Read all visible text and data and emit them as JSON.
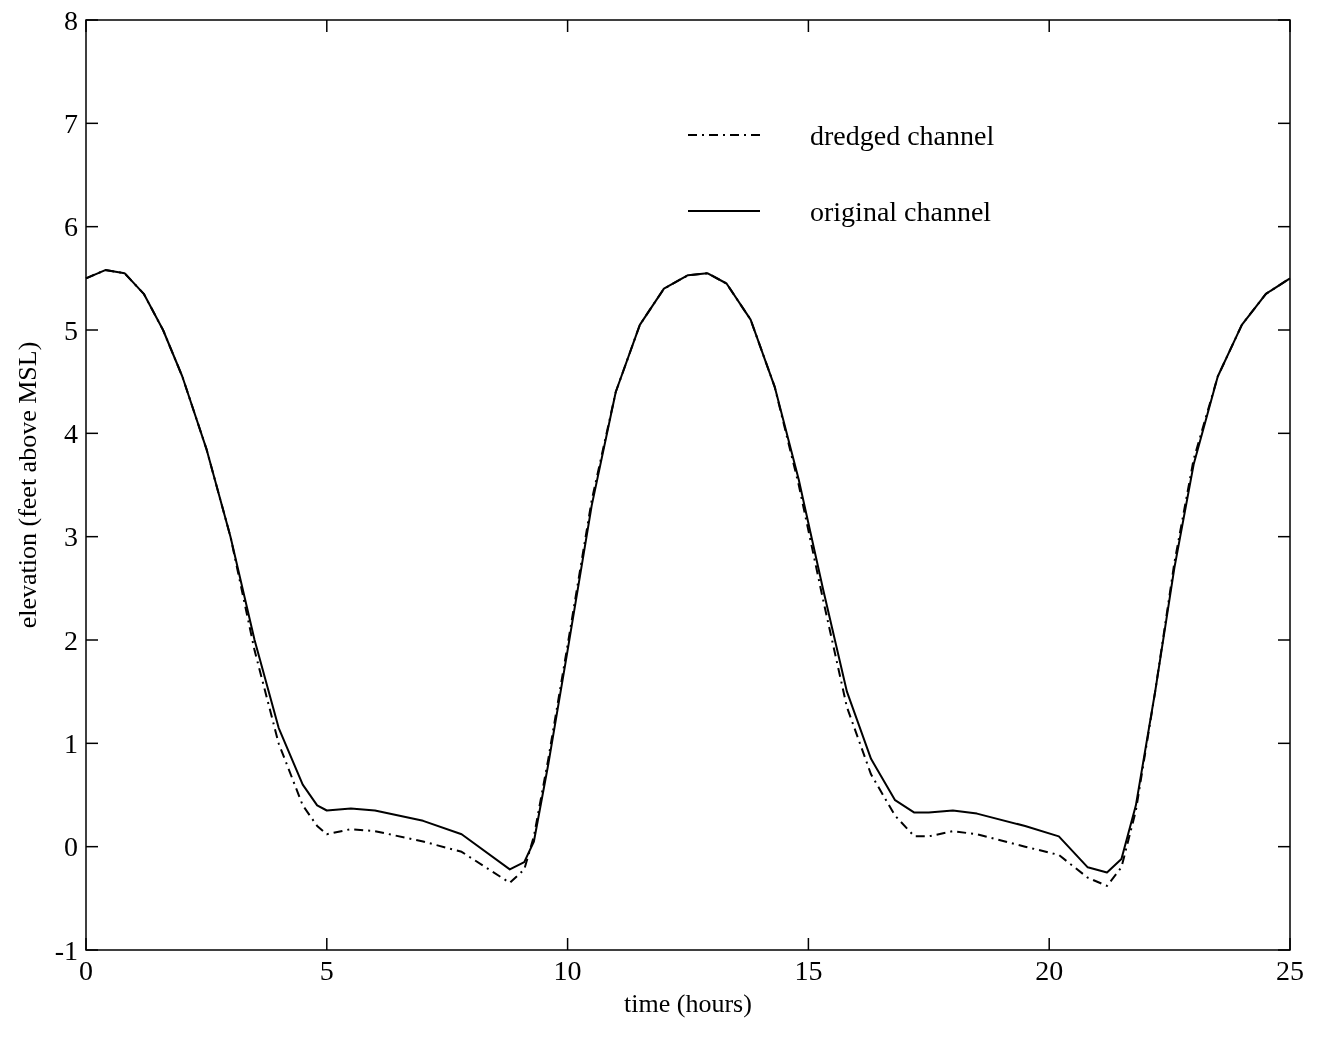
{
  "chart_data": {
    "type": "line",
    "xlabel": "time (hours)",
    "ylabel": "elevation (feet above MSL)",
    "x": [
      0,
      0.4,
      0.8,
      1.2,
      1.6,
      2.0,
      2.5,
      3.0,
      3.5,
      4.0,
      4.5,
      4.8,
      5.0,
      5.5,
      6.0,
      7.0,
      7.8,
      8.8,
      9.1,
      9.3,
      9.6,
      10.0,
      10.5,
      11.0,
      11.5,
      12.0,
      12.5,
      12.9,
      13.3,
      13.8,
      14.3,
      14.8,
      15.3,
      15.8,
      16.3,
      16.8,
      17.2,
      17.5,
      18.0,
      18.5,
      19.5,
      20.2,
      20.8,
      21.2,
      21.5,
      21.8,
      22.2,
      22.6,
      23.0,
      23.5,
      24.0,
      24.5,
      25.0
    ],
    "xlim": [
      0,
      25
    ],
    "xticks": [
      0,
      5,
      10,
      15,
      20,
      25
    ],
    "ylim": [
      -1,
      8
    ],
    "yticks": [
      -1,
      0,
      1,
      2,
      3,
      4,
      5,
      6,
      7,
      8
    ],
    "grid": false,
    "legend": "top right",
    "series": [
      {
        "name": "dredged channel",
        "color": "#000000",
        "line_style": "dashed",
        "values": [
          5.5,
          5.58,
          5.55,
          5.35,
          5.0,
          4.55,
          3.85,
          3.0,
          1.9,
          1.0,
          0.4,
          0.2,
          0.12,
          0.17,
          0.15,
          0.05,
          -0.05,
          -0.35,
          -0.22,
          0.1,
          0.85,
          1.95,
          3.35,
          4.4,
          5.05,
          5.4,
          5.53,
          5.55,
          5.45,
          5.1,
          4.45,
          3.5,
          2.4,
          1.35,
          0.7,
          0.3,
          0.1,
          0.1,
          0.15,
          0.12,
          0.0,
          -0.08,
          -0.3,
          -0.38,
          -0.2,
          0.35,
          1.5,
          2.75,
          3.75,
          4.55,
          5.05,
          5.35,
          5.5
        ]
      },
      {
        "name": "original channel",
        "color": "#000000",
        "line_style": "solid",
        "values": [
          5.5,
          5.58,
          5.55,
          5.35,
          5.0,
          4.55,
          3.85,
          3.0,
          2.0,
          1.15,
          0.6,
          0.4,
          0.35,
          0.37,
          0.35,
          0.25,
          0.12,
          -0.22,
          -0.15,
          0.05,
          0.8,
          1.9,
          3.3,
          4.4,
          5.05,
          5.4,
          5.53,
          5.55,
          5.45,
          5.1,
          4.45,
          3.55,
          2.5,
          1.5,
          0.85,
          0.45,
          0.33,
          0.33,
          0.35,
          0.32,
          0.2,
          0.1,
          -0.2,
          -0.25,
          -0.12,
          0.4,
          1.5,
          2.7,
          3.7,
          4.55,
          5.05,
          5.35,
          5.5
        ]
      }
    ]
  }
}
